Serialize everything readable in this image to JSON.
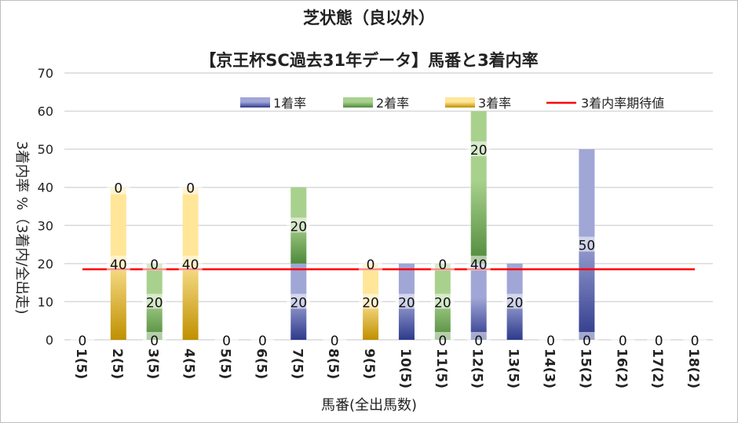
{
  "chart_data": {
    "type": "bar",
    "stacked": true,
    "title": "芝状態（良以外）",
    "subtitle": "【京王杯SC過去31年データ】馬番と3着内率",
    "xlabel": "馬番(全出馬数)",
    "ylabel": "3着内率 %（3着内/全出走)",
    "ylim": [
      0,
      70
    ],
    "yticks": [
      0,
      10,
      20,
      30,
      40,
      50,
      60,
      70
    ],
    "grid": true,
    "legend_position": "top-right",
    "categories": [
      "1(5)",
      "2(5)",
      "3(5)",
      "4(5)",
      "5(5)",
      "6(5)",
      "7(5)",
      "8(5)",
      "9(5)",
      "10(5)",
      "11(5)",
      "12(5)",
      "13(5)",
      "14(3)",
      "15(2)",
      "16(2)",
      "17(2)",
      "18(2)"
    ],
    "series": [
      {
        "name": "1着率",
        "color": "#2e3a8c",
        "light": "#a0a6d6",
        "values": [
          0,
          0,
          0,
          0,
          0,
          0,
          20,
          0,
          0,
          20,
          0,
          20,
          20,
          0,
          50,
          0,
          0,
          0
        ]
      },
      {
        "name": "2着率",
        "color": "#4f8a3a",
        "light": "#a9d18e",
        "values": [
          0,
          0,
          20,
          0,
          0,
          0,
          20,
          0,
          0,
          0,
          20,
          40,
          0,
          0,
          0,
          0,
          0,
          0
        ]
      },
      {
        "name": "3着率",
        "color": "#bf9000",
        "light": "#ffe699",
        "values": [
          0,
          40,
          0,
          40,
          0,
          0,
          0,
          0,
          20,
          0,
          0,
          0,
          0,
          0,
          0,
          0,
          0,
          0
        ]
      }
    ],
    "reference_line": {
      "name": "3着内率期待値",
      "value": 18.5,
      "color": "#ff0000"
    },
    "data_labels": [
      [
        [
          "0",
          0
        ]
      ],
      [
        [
          "40",
          20
        ],
        [
          "0",
          40
        ]
      ],
      [
        [
          "0",
          0
        ],
        [
          "20",
          10
        ],
        [
          "0",
          20
        ]
      ],
      [
        [
          "40",
          20
        ],
        [
          "0",
          40
        ]
      ],
      [
        [
          "0",
          0
        ]
      ],
      [
        [
          "0",
          0
        ]
      ],
      [
        [
          "20",
          10
        ],
        [
          "20",
          30
        ]
      ],
      [
        [
          "0",
          0
        ]
      ],
      [
        [
          "20",
          10
        ],
        [
          "0",
          20
        ]
      ],
      [
        [
          "20",
          10
        ]
      ],
      [
        [
          "0",
          0
        ],
        [
          "20",
          10
        ],
        [
          "0",
          20
        ]
      ],
      [
        [
          "0",
          0
        ],
        [
          "40",
          20
        ],
        [
          "20",
          50
        ]
      ],
      [
        [
          "20",
          10
        ]
      ],
      [
        [
          "0",
          0
        ]
      ],
      [
        [
          "0",
          0
        ],
        [
          "50",
          25
        ]
      ],
      [
        [
          "0",
          0
        ]
      ],
      [
        [
          "0",
          0
        ]
      ],
      [
        [
          "0",
          0
        ]
      ]
    ]
  }
}
